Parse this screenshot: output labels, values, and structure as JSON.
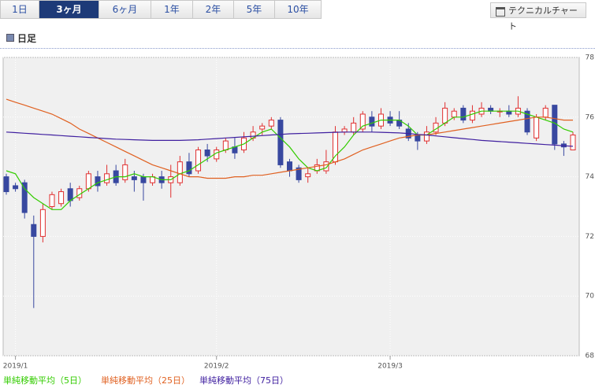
{
  "ui": {
    "tabs": [
      "1日",
      "3ヶ月",
      "6ヶ月",
      "1年",
      "2年",
      "5年",
      "10年"
    ],
    "selected_tab": 1,
    "button": "テクニカルチャート",
    "section": "日足"
  },
  "chart_data": {
    "type": "candlestick",
    "ylim": [
      68,
      78
    ],
    "yticks": [
      68,
      70,
      72,
      74,
      76,
      78
    ],
    "grid": true,
    "up_color": "#e03030",
    "down_color": "#3848a0",
    "categories": [
      null,
      "2019/1",
      null,
      null,
      null,
      null,
      null,
      null,
      null,
      null,
      null,
      null,
      null,
      null,
      null,
      null,
      null,
      null,
      null,
      null,
      null,
      null,
      null,
      "2019/2",
      null,
      null,
      null,
      null,
      null,
      null,
      null,
      null,
      null,
      null,
      null,
      null,
      null,
      null,
      null,
      null,
      null,
      null,
      "2019/3",
      null,
      null,
      null,
      null,
      null,
      null,
      null,
      null,
      null,
      null,
      null,
      null,
      null,
      null,
      null,
      null,
      null,
      null,
      null,
      null
    ],
    "open": [
      74.0,
      73.7,
      73.8,
      72.4,
      72.0,
      73.0,
      73.1,
      73.6,
      73.3,
      73.6,
      74.0,
      73.8,
      74.2,
      73.9,
      74.0,
      74.0,
      73.8,
      74.0,
      73.8,
      73.8,
      74.5,
      74.2,
      74.9,
      74.6,
      74.9,
      75.0,
      74.9,
      75.3,
      75.6,
      75.7,
      75.9,
      74.5,
      74.3,
      74.0,
      74.2,
      74.2,
      74.5,
      75.5,
      75.5,
      75.6,
      76.0,
      75.7,
      76.0,
      75.9,
      75.6,
      75.4,
      75.2,
      75.5,
      75.8,
      76.0,
      76.3,
      75.9,
      76.1,
      76.3,
      76.2,
      76.2,
      76.1,
      76.2,
      75.3,
      76.0,
      76.4,
      75.1,
      74.9
    ],
    "high": [
      74.1,
      73.8,
      73.9,
      72.7,
      73.1,
      73.5,
      73.6,
      73.8,
      73.7,
      74.2,
      74.2,
      74.4,
      74.4,
      74.6,
      74.2,
      74.1,
      74.1,
      74.2,
      74.4,
      74.7,
      74.8,
      75.0,
      75.1,
      75.0,
      75.3,
      75.3,
      75.5,
      75.7,
      75.8,
      76.0,
      76.0,
      74.6,
      74.4,
      74.3,
      74.6,
      74.9,
      75.7,
      75.7,
      76.0,
      76.2,
      76.2,
      76.3,
      76.2,
      76.2,
      75.8,
      75.5,
      75.7,
      76.0,
      76.5,
      76.3,
      76.4,
      76.4,
      76.5,
      76.4,
      76.3,
      76.4,
      76.7,
      76.3,
      76.1,
      76.4,
      76.4,
      75.2,
      75.5
    ],
    "low": [
      73.4,
      73.5,
      72.6,
      69.6,
      71.8,
      72.9,
      73.0,
      73.0,
      73.2,
      73.5,
      73.5,
      73.7,
      73.7,
      73.8,
      73.5,
      73.2,
      73.7,
      73.6,
      73.3,
      73.7,
      74.0,
      74.1,
      74.5,
      74.5,
      74.8,
      74.6,
      74.8,
      75.2,
      75.4,
      75.6,
      74.3,
      74.0,
      73.8,
      73.8,
      74.1,
      74.1,
      74.4,
      75.4,
      75.4,
      75.5,
      75.5,
      75.6,
      75.7,
      75.6,
      75.2,
      74.9,
      75.1,
      75.4,
      75.7,
      75.9,
      75.8,
      75.8,
      76.0,
      76.1,
      76.0,
      76.0,
      76.0,
      75.4,
      75.2,
      75.9,
      74.9,
      74.7,
      74.9
    ],
    "close": [
      73.5,
      73.6,
      72.8,
      72.0,
      72.9,
      73.4,
      73.5,
      73.2,
      73.6,
      74.1,
      73.7,
      74.1,
      73.8,
      74.4,
      73.9,
      73.8,
      74.0,
      73.8,
      74.0,
      74.5,
      74.1,
      74.9,
      74.7,
      74.9,
      75.2,
      74.8,
      75.3,
      75.5,
      75.7,
      75.9,
      74.4,
      74.2,
      73.9,
      74.1,
      74.4,
      74.5,
      75.5,
      75.6,
      75.8,
      76.1,
      75.7,
      76.1,
      75.8,
      75.7,
      75.3,
      75.2,
      75.5,
      75.8,
      76.3,
      76.2,
      75.9,
      76.2,
      76.3,
      76.2,
      76.2,
      76.1,
      76.3,
      75.5,
      76.0,
      76.3,
      75.1,
      75.0,
      75.4
    ],
    "series": [
      {
        "name": "単純移動平均（5日）",
        "color": "#33cc00",
        "values": [
          74.2,
          74.1,
          73.6,
          73.3,
          73.1,
          72.9,
          72.9,
          73.2,
          73.4,
          73.6,
          73.8,
          73.9,
          74.0,
          74.0,
          74.1,
          74.0,
          74.0,
          73.9,
          73.9,
          74.1,
          74.2,
          74.4,
          74.6,
          74.8,
          74.9,
          75.0,
          75.1,
          75.3,
          75.5,
          75.6,
          75.3,
          75.0,
          74.6,
          74.3,
          74.2,
          74.3,
          74.7,
          75.0,
          75.4,
          75.7,
          75.8,
          75.9,
          75.9,
          75.9,
          75.7,
          75.4,
          75.4,
          75.6,
          75.8,
          76.0,
          76.0,
          76.1,
          76.2,
          76.2,
          76.2,
          76.2,
          76.2,
          76.1,
          76.0,
          75.9,
          75.8,
          75.6,
          75.5
        ]
      },
      {
        "name": "単純移動平均（25日）",
        "color": "#e06020",
        "values": [
          76.6,
          76.5,
          76.4,
          76.3,
          76.2,
          76.1,
          75.95,
          75.8,
          75.6,
          75.45,
          75.3,
          75.15,
          75.0,
          74.85,
          74.7,
          74.55,
          74.4,
          74.3,
          74.2,
          74.1,
          74.0,
          74.0,
          73.95,
          73.95,
          73.95,
          74.0,
          74.0,
          74.05,
          74.05,
          74.1,
          74.15,
          74.2,
          74.25,
          74.3,
          74.35,
          74.4,
          74.5,
          74.6,
          74.75,
          74.9,
          75.0,
          75.1,
          75.2,
          75.3,
          75.35,
          75.4,
          75.4,
          75.45,
          75.5,
          75.55,
          75.6,
          75.65,
          75.7,
          75.75,
          75.8,
          75.85,
          75.9,
          75.95,
          76.0,
          76.0,
          75.95,
          75.9,
          75.9
        ]
      },
      {
        "name": "単純移動平均（75日）",
        "color": "#4020a0",
        "values": [
          75.5,
          75.48,
          75.46,
          75.44,
          75.42,
          75.4,
          75.38,
          75.36,
          75.34,
          75.32,
          75.3,
          75.28,
          75.26,
          75.25,
          75.24,
          75.23,
          75.22,
          75.22,
          75.22,
          75.22,
          75.23,
          75.24,
          75.26,
          75.28,
          75.3,
          75.32,
          75.34,
          75.36,
          75.38,
          75.4,
          75.42,
          75.44,
          75.45,
          75.46,
          75.47,
          75.48,
          75.49,
          75.5,
          75.5,
          75.5,
          75.5,
          75.49,
          75.48,
          75.47,
          75.45,
          75.42,
          75.4,
          75.37,
          75.34,
          75.31,
          75.28,
          75.25,
          75.22,
          75.2,
          75.18,
          75.16,
          75.14,
          75.12,
          75.1,
          75.08,
          75.06,
          75.04,
          75.02
        ]
      }
    ]
  }
}
